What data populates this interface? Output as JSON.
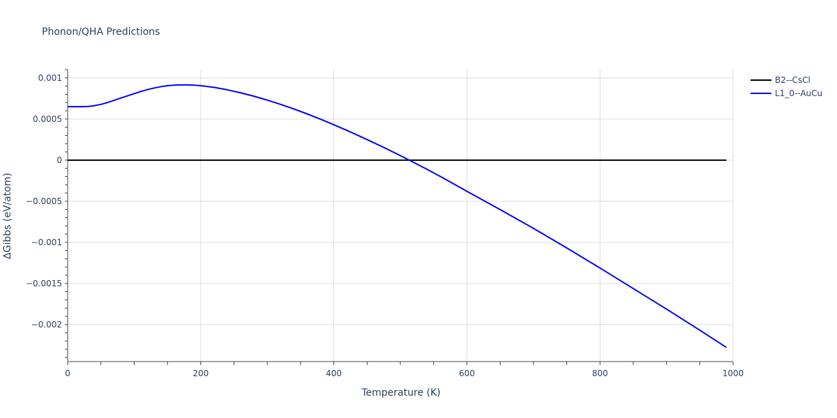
{
  "chart_data": {
    "type": "line",
    "title": "Phonon/QHA Predictions",
    "xlabel": "Temperature (K)",
    "ylabel": "ΔGibbs (eV/atom)",
    "xlim": [
      0,
      1000
    ],
    "ylim": [
      -0.00245,
      0.0011
    ],
    "grid": true,
    "legend_position": "right",
    "x_ticks": [
      0,
      200,
      400,
      600,
      800,
      1000
    ],
    "x_tick_labels": [
      "0",
      "200",
      "400",
      "600",
      "800",
      "1000"
    ],
    "y_ticks": [
      0.001,
      0.0005,
      0,
      -0.0005,
      -0.001,
      -0.0015,
      -0.002
    ],
    "y_tick_labels": [
      "0.001",
      "0.0005",
      "0",
      "−0.0005",
      "−0.001",
      "−0.0015",
      "−0.002"
    ],
    "series": [
      {
        "name": "B2--CsCl",
        "color": "#000000",
        "x": [
          0,
          990
        ],
        "y": [
          0,
          0
        ]
      },
      {
        "name": "L1_0--AuCu",
        "color": "#0000ff",
        "x": [
          0,
          10,
          20,
          30,
          40,
          50,
          60,
          70,
          80,
          90,
          100,
          110,
          120,
          130,
          140,
          150,
          160,
          170,
          180,
          190,
          200,
          220,
          240,
          260,
          280,
          300,
          320,
          340,
          360,
          380,
          400,
          420,
          440,
          460,
          480,
          500,
          520,
          540,
          560,
          580,
          600,
          650,
          700,
          750,
          800,
          850,
          900,
          950,
          990
        ],
        "y": [
          0.00065,
          0.00065,
          0.00065,
          0.000652,
          0.000662,
          0.000678,
          0.0007,
          0.000728,
          0.000755,
          0.000782,
          0.000808,
          0.000835,
          0.000858,
          0.000877,
          0.000893,
          0.000905,
          0.000912,
          0.000915,
          0.000915,
          0.000912,
          0.000905,
          0.000885,
          0.000855,
          0.000818,
          0.000777,
          0.00073,
          0.000678,
          0.000622,
          0.000562,
          0.000498,
          0.00043,
          0.00036,
          0.000287,
          0.000212,
          0.000135,
          5.5e-05,
          -2.8e-05,
          -0.000112,
          -0.000198,
          -0.000288,
          -0.00038,
          -0.000602,
          -0.00083,
          -0.001068,
          -0.001312,
          -0.001562,
          -0.001812,
          -0.002068,
          -0.002278
        ]
      }
    ]
  }
}
